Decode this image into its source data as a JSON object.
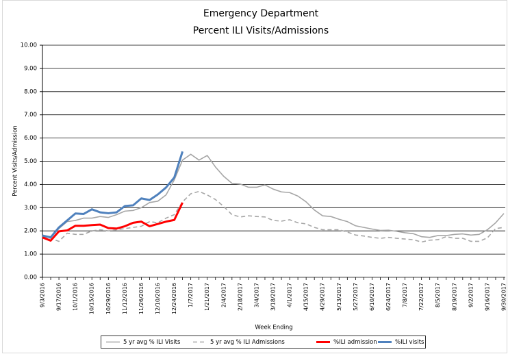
{
  "chart_data": {
    "type": "line",
    "title": "Emergency Department",
    "subtitle": "Percent ILI Visits/Admissions",
    "x_label": "Week Ending",
    "y_label": "Percent Visits/Admission",
    "categories": [
      "9/3/2016",
      null,
      "9/17/2016",
      null,
      "10/1/2016",
      null,
      "10/15/2016",
      null,
      "10/29/2016",
      null,
      "11/12/2016",
      null,
      "11/26/2016",
      null,
      "12/10/2016",
      null,
      "12/24/2016",
      null,
      "1/7/2017",
      null,
      "1/21/2017",
      null,
      "2/4/2017",
      null,
      "2/18/2017",
      null,
      "3/4/2017",
      null,
      "3/18/2017",
      null,
      "4/1/2017",
      null,
      "4/15/2017",
      null,
      "4/29/2017",
      null,
      "5/13/2017",
      null,
      "5/27/2017",
      null,
      "6/10/2017",
      null,
      "6/24/2017",
      null,
      "7/8/2017",
      null,
      "7/22/2017",
      null,
      "8/5/2017",
      null,
      "8/19/2017",
      null,
      "9/2/2017",
      null,
      "9/16/2017",
      null,
      "9/30/2017"
    ],
    "series": [
      {
        "name": "5 yr avg % ILI Visits",
        "color": "#a6a6a6",
        "dashed": false,
        "values": [
          1.8,
          1.75,
          2.1,
          2.4,
          2.45,
          2.55,
          2.55,
          2.62,
          2.58,
          2.7,
          2.85,
          2.88,
          3.0,
          3.22,
          3.28,
          3.55,
          4.2,
          5.05,
          5.3,
          5.05,
          5.25,
          4.75,
          4.35,
          4.05,
          4.02,
          3.88,
          3.88,
          3.98,
          3.8,
          3.68,
          3.65,
          3.5,
          3.25,
          2.9,
          2.65,
          2.62,
          2.5,
          2.4,
          2.22,
          2.15,
          2.08,
          2.02,
          2.03,
          1.98,
          1.92,
          1.88,
          1.75,
          1.72,
          1.8,
          1.8,
          1.85,
          1.87,
          1.82,
          1.85,
          2.05,
          2.35,
          2.75
        ]
      },
      {
        "name": "5 yr avg % ILI Admissions",
        "color": "#a6a6a6",
        "dashed": true,
        "values": [
          1.75,
          1.68,
          1.55,
          1.9,
          1.85,
          1.85,
          2.0,
          2.05,
          2.0,
          2.05,
          2.1,
          2.15,
          2.2,
          2.4,
          2.35,
          2.55,
          2.7,
          3.25,
          3.6,
          3.7,
          3.55,
          3.35,
          3.05,
          2.7,
          2.6,
          2.65,
          2.62,
          2.6,
          2.45,
          2.42,
          2.48,
          2.35,
          2.3,
          2.15,
          2.05,
          2.05,
          2.05,
          1.95,
          1.82,
          1.78,
          1.72,
          1.68,
          1.72,
          1.68,
          1.65,
          1.62,
          1.52,
          1.6,
          1.62,
          1.75,
          1.68,
          1.68,
          1.55,
          1.55,
          1.7,
          2.1,
          2.15
        ]
      },
      {
        "name": "%ILI admission",
        "color": "#ff0000",
        "dashed": false,
        "values": [
          1.72,
          1.58,
          1.98,
          2.02,
          2.22,
          2.22,
          2.25,
          2.27,
          2.12,
          2.1,
          2.2,
          2.35,
          2.4,
          2.2,
          2.3,
          2.4,
          2.47,
          3.22,
          null,
          null,
          null,
          null,
          null,
          null,
          null,
          null,
          null,
          null,
          null,
          null,
          null,
          null,
          null,
          null,
          null,
          null,
          null,
          null,
          null,
          null,
          null,
          null,
          null,
          null,
          null,
          null,
          null,
          null,
          null,
          null,
          null,
          null,
          null,
          null,
          null,
          null,
          null
        ]
      },
      {
        "name": "%ILI visits",
        "color": "#4f81bd",
        "dashed": false,
        "values": [
          1.8,
          1.72,
          2.15,
          2.45,
          2.75,
          2.73,
          2.93,
          2.8,
          2.76,
          2.8,
          3.07,
          3.1,
          3.4,
          3.33,
          3.57,
          3.87,
          4.3,
          5.42,
          null,
          null,
          null,
          null,
          null,
          null,
          null,
          null,
          null,
          null,
          null,
          null,
          null,
          null,
          null,
          null,
          null,
          null,
          null,
          null,
          null,
          null,
          null,
          null,
          null,
          null,
          null,
          null,
          null,
          null,
          null,
          null,
          null,
          null,
          null,
          null,
          null,
          null,
          null
        ]
      }
    ],
    "ylim": [
      0,
      10
    ],
    "yticks": [
      {
        "value": 0,
        "label": "0.00"
      },
      {
        "value": 1,
        "label": "1.00"
      },
      {
        "value": 2,
        "label": "2.00"
      },
      {
        "value": 3,
        "label": "3.00"
      },
      {
        "value": 4,
        "label": "4.00"
      },
      {
        "value": 5,
        "label": "5.00"
      },
      {
        "value": 6,
        "label": "6.00"
      },
      {
        "value": 7,
        "label": "7.00"
      },
      {
        "value": 8,
        "label": "8.00"
      },
      {
        "value": 9,
        "label": "9.00"
      },
      {
        "value": 10,
        "label": "10.00"
      }
    ],
    "grid": true,
    "legend": "bottom"
  }
}
